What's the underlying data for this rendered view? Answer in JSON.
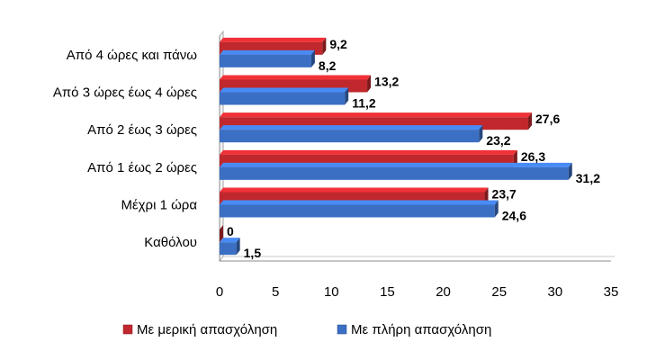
{
  "chart_data": {
    "type": "bar",
    "orientation": "horizontal",
    "title": "",
    "xlabel": "",
    "ylabel": "",
    "categories": [
      "Καθόλου",
      "Μέχρι 1 ώρα",
      "Από 1 έως 2 ώρες",
      "Από 2 έως 3 ώρες",
      "Από 3 ώρες έως 4 ώρες",
      "Από 4 ώρες και πάνω"
    ],
    "series": [
      {
        "name": "Με μερική απασχόληση",
        "color": "#C0282D",
        "values": [
          0,
          23.7,
          26.3,
          27.6,
          13.2,
          9.2
        ],
        "labels": [
          "0",
          "23,7",
          "26,3",
          "27,6",
          "13,2",
          "9,2"
        ]
      },
      {
        "name": "Με πλήρη απασχόληση",
        "color": "#3A6FC4",
        "values": [
          1.5,
          24.6,
          31.2,
          23.2,
          11.2,
          8.2
        ],
        "labels": [
          "1,5",
          "24,6",
          "31,2",
          "23,2",
          "11,2",
          "8,2"
        ]
      }
    ],
    "xlim": [
      0,
      35
    ],
    "xticks": [
      "0",
      "5",
      "10",
      "15",
      "20",
      "25",
      "30",
      "35"
    ],
    "grid": false,
    "legend_position": "bottom"
  }
}
